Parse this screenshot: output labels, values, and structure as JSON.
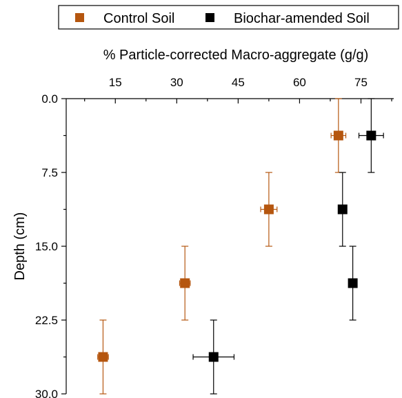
{
  "chart_data": {
    "type": "scatter",
    "xlabel": "% Particle-corrected Macro-aggregate (g/g)",
    "ylabel": "Depth (cm)",
    "x_axis_position": "top",
    "y_axis_inverted": true,
    "xlim": [
      3,
      83
    ],
    "ylim": [
      0,
      30
    ],
    "x_ticks": [
      "15",
      "30",
      "45",
      "60",
      "75"
    ],
    "y_ticks": [
      "0.0",
      "7.5",
      "15.0",
      "22.5",
      "30.0"
    ],
    "legend": {
      "placement": "top",
      "entries": [
        "Control Soil",
        "Biochar-amended Soil"
      ]
    },
    "colors": {
      "control": "#b5560f",
      "biochar": "#000000"
    },
    "series": [
      {
        "name": "Control Soil",
        "points": [
          {
            "x": 69.5,
            "y": 3.75,
            "xerr": 1.8,
            "yerr": 3.75
          },
          {
            "x": 52.5,
            "y": 11.25,
            "xerr": 2.0,
            "yerr": 3.75
          },
          {
            "x": 32.0,
            "y": 18.75,
            "xerr": 1.3,
            "yerr": 3.75
          },
          {
            "x": 12.0,
            "y": 26.25,
            "xerr": 1.3,
            "yerr": 3.75
          }
        ]
      },
      {
        "name": "Biochar-amended Soil",
        "points": [
          {
            "x": 77.5,
            "y": 3.75,
            "xerr": 3.0,
            "yerr": 3.75
          },
          {
            "x": 70.5,
            "y": 11.25,
            "xerr": 1.0,
            "yerr": 3.75
          },
          {
            "x": 73.0,
            "y": 18.75,
            "xerr": 0.8,
            "yerr": 3.75
          },
          {
            "x": 39.0,
            "y": 26.25,
            "xerr": 5.0,
            "yerr": 3.75
          }
        ]
      }
    ]
  }
}
